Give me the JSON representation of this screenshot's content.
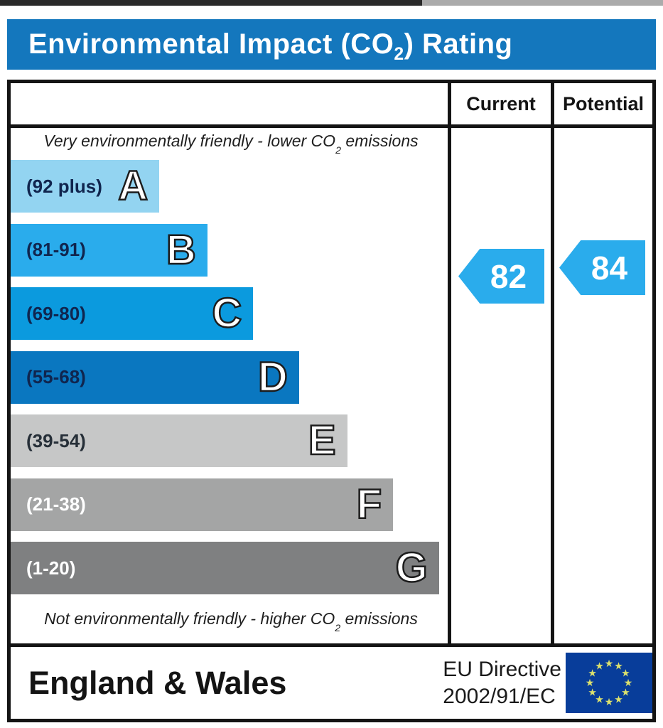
{
  "title": {
    "pre": "Environmental Impact (CO",
    "sub": "2",
    "post": ") Rating"
  },
  "header": {
    "current": "Current",
    "potential": "Potential"
  },
  "notes": {
    "top": {
      "pre": "Very environmentally friendly - lower CO",
      "sub": "2",
      "post": " emissions"
    },
    "bottom": {
      "pre": "Not environmentally friendly - higher CO",
      "sub": "2",
      "post": " emissions"
    }
  },
  "bands": [
    {
      "letter": "A",
      "range": "(92 plus)",
      "color": "#93d4f1",
      "label_color": "#10254e",
      "width_pct": 34
    },
    {
      "letter": "B",
      "range": "(81-91)",
      "color": "#2aacec",
      "label_color": "#10254e",
      "width_pct": 45
    },
    {
      "letter": "C",
      "range": "(69-80)",
      "color": "#0b9ade",
      "label_color": "#10254e",
      "width_pct": 55.5
    },
    {
      "letter": "D",
      "range": "(55-68)",
      "color": "#0a77c0",
      "label_color": "#10254e",
      "width_pct": 66
    },
    {
      "letter": "E",
      "range": "(39-54)",
      "color": "#c6c7c7",
      "label_color": "#262f38",
      "width_pct": 77
    },
    {
      "letter": "F",
      "range": "(21-38)",
      "color": "#a4a5a5",
      "label_color": "#ffffff",
      "width_pct": 87.5
    },
    {
      "letter": "G",
      "range": "(1-20)",
      "color": "#7f8081",
      "label_color": "#ffffff",
      "width_pct": 98
    }
  ],
  "ratings": {
    "current": {
      "value": "82",
      "color": "#2aacec"
    },
    "potential": {
      "value": "84",
      "color": "#2aacec"
    }
  },
  "footer": {
    "region": "England & Wales",
    "directive_line1": "EU Directive",
    "directive_line2": "2002/91/EC",
    "eu_flag": {
      "bg": "#083d9a",
      "star_color": "#dde26d"
    }
  },
  "chart_data": {
    "type": "bar",
    "title": "Environmental Impact (CO2) Rating",
    "categories": [
      "A",
      "B",
      "C",
      "D",
      "E",
      "F",
      "G"
    ],
    "band_ranges": [
      "92 plus",
      "81-91",
      "69-80",
      "55-68",
      "39-54",
      "21-38",
      "1-20"
    ],
    "band_colors": [
      "#93d4f1",
      "#2aacec",
      "#0b9ade",
      "#0a77c0",
      "#c6c7c7",
      "#a4a5a5",
      "#7f8081"
    ],
    "bar_relative_widths_pct": [
      34,
      45,
      55.5,
      66,
      77,
      87.5,
      98
    ],
    "series": [
      {
        "name": "Current",
        "value": 82,
        "band": "B"
      },
      {
        "name": "Potential",
        "value": 84,
        "band": "B"
      }
    ],
    "scale_note_top": "Very environmentally friendly - lower CO2 emissions",
    "scale_note_bottom": "Not environmentally friendly - higher CO2 emissions",
    "region": "England & Wales",
    "directive": "EU Directive 2002/91/EC",
    "value_range": [
      1,
      100
    ],
    "legend_position": "none",
    "grid": false
  }
}
